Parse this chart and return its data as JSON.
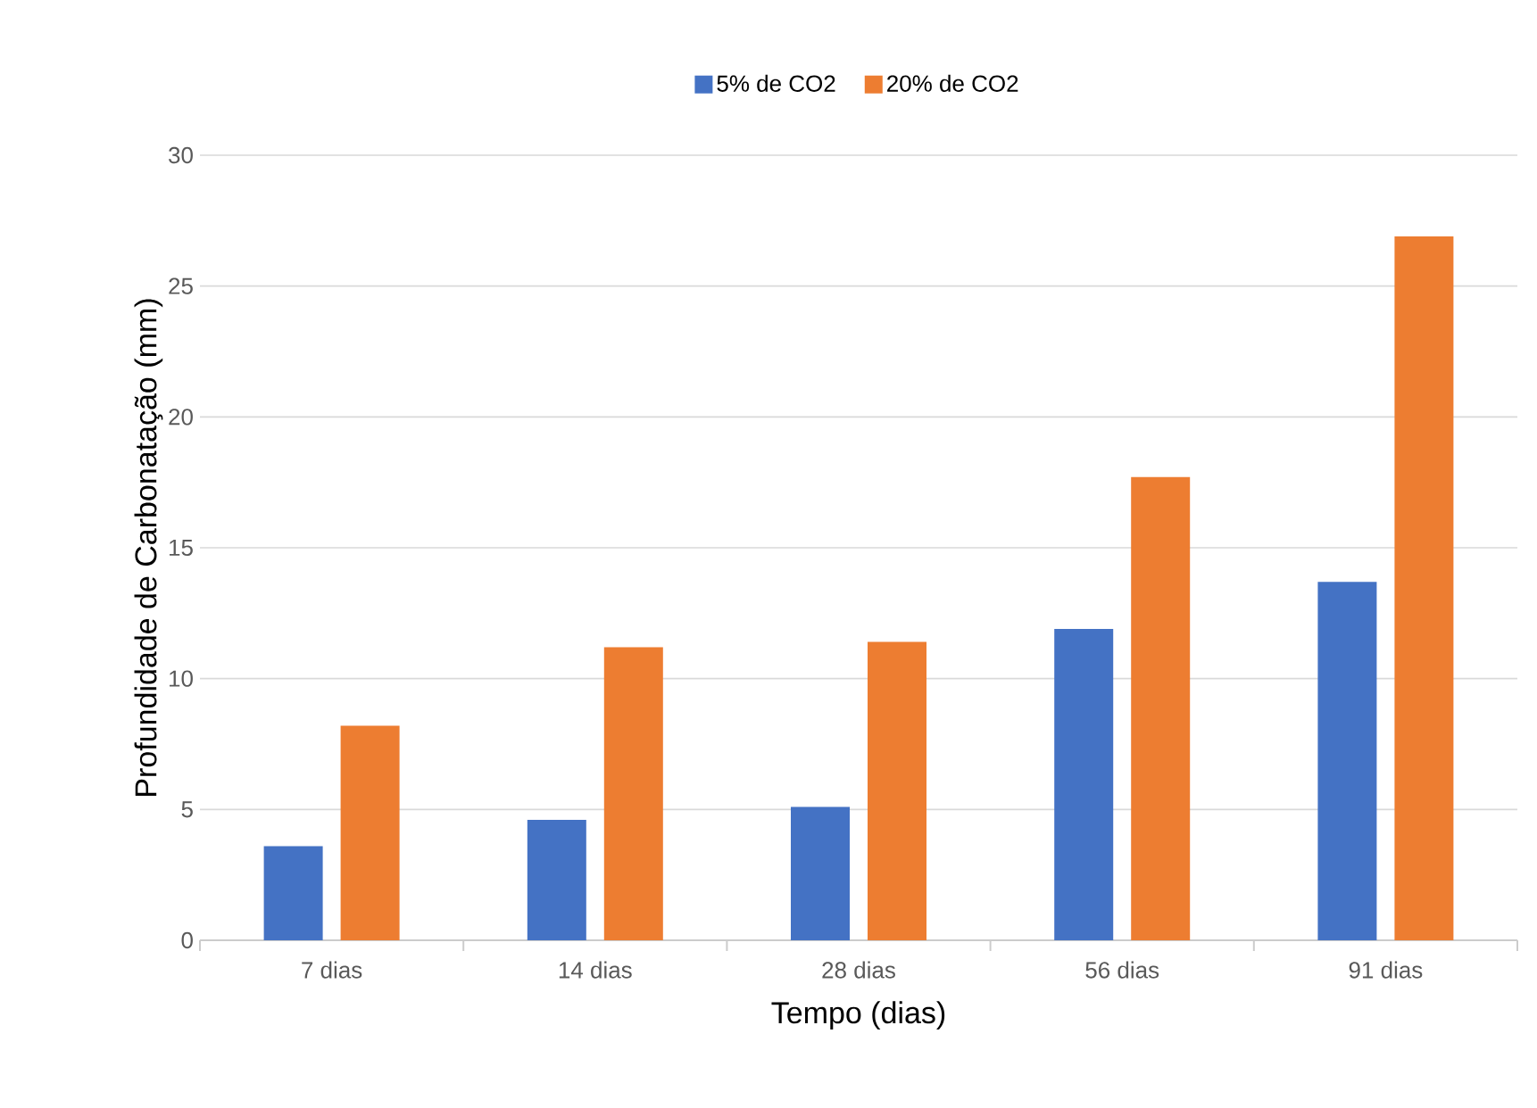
{
  "chart_data": {
    "type": "bar",
    "xlabel": "Tempo (dias)",
    "ylabel": "Profundidade de Carbonatação (mm)",
    "categories": [
      "7 dias",
      "14 dias",
      "28 dias",
      "56 dias",
      "91 dias"
    ],
    "series": [
      {
        "name": "5% de CO2",
        "color": "#4472c4",
        "values": [
          3.6,
          4.6,
          5.1,
          11.9,
          13.7
        ]
      },
      {
        "name": "20% de CO2",
        "color": "#ed7d31",
        "values": [
          8.2,
          11.2,
          11.4,
          17.7,
          26.9
        ]
      }
    ],
    "ylim": [
      0,
      30
    ],
    "yticks": [
      0,
      5,
      10,
      15,
      20,
      25,
      30
    ],
    "grid": "y",
    "legend": "top"
  }
}
